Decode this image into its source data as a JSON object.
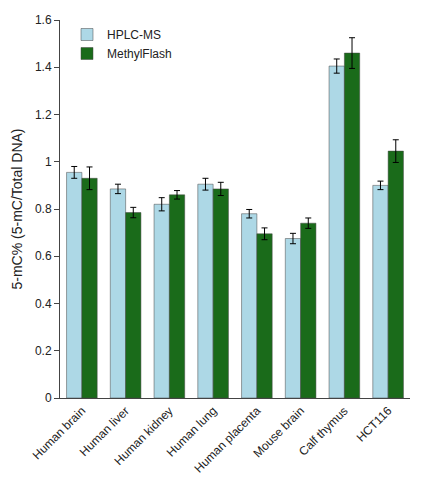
{
  "chart_data": {
    "type": "bar",
    "categories": [
      "Human brain",
      "Human liver",
      "Human kidney",
      "Human lung",
      "Human placenta",
      "Mouse brain",
      "Calf thymus",
      "HCT116"
    ],
    "series": [
      {
        "name": "HPLC-MS",
        "color": "#add8e6",
        "values": [
          0.955,
          0.885,
          0.82,
          0.905,
          0.78,
          0.675,
          1.405,
          0.9
        ],
        "errors": [
          0.025,
          0.02,
          0.028,
          0.025,
          0.018,
          0.022,
          0.03,
          0.018
        ]
      },
      {
        "name": "MethylFlash",
        "color": "#1a6b1a",
        "values": [
          0.93,
          0.785,
          0.86,
          0.885,
          0.695,
          0.74,
          1.46,
          1.045
        ],
        "errors": [
          0.048,
          0.022,
          0.018,
          0.028,
          0.025,
          0.022,
          0.065,
          0.048
        ]
      }
    ],
    "ylabel": "5-mC% (5-mC/Total DNA)",
    "ylim": [
      0,
      1.6
    ],
    "yticks": [
      0,
      0.2,
      0.4,
      0.6,
      0.8,
      1,
      1.2,
      1.4,
      1.6
    ],
    "grid": false,
    "legend": "upper left"
  }
}
